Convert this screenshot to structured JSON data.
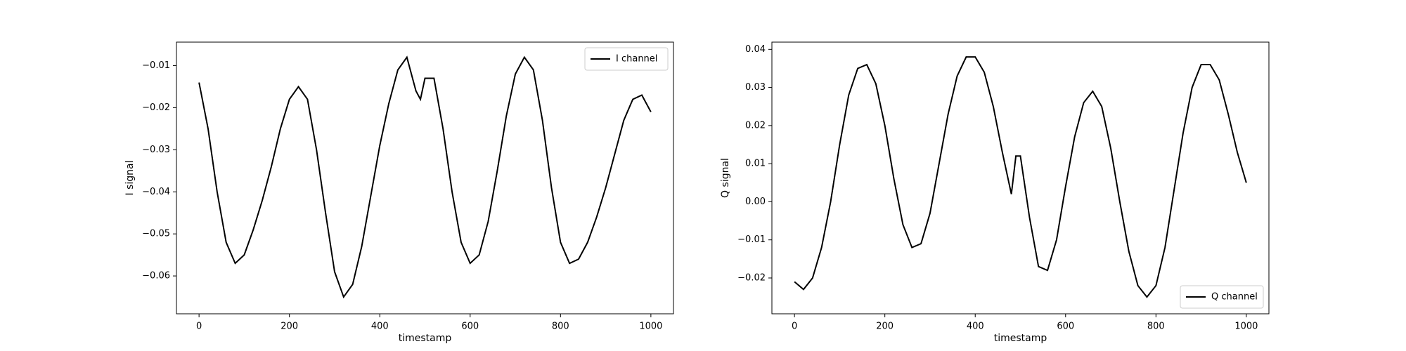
{
  "chart_data": [
    {
      "type": "line",
      "x_label": "timestamp",
      "y_label": "I signal",
      "legend": "upper right",
      "x": [
        0,
        20,
        40,
        60,
        80,
        100,
        120,
        140,
        160,
        180,
        200,
        220,
        240,
        260,
        280,
        300,
        320,
        340,
        360,
        380,
        400,
        420,
        440,
        460,
        480,
        490,
        500,
        520,
        540,
        560,
        580,
        600,
        620,
        640,
        660,
        680,
        700,
        720,
        740,
        760,
        780,
        800,
        820,
        840,
        860,
        880,
        900,
        920,
        940,
        960,
        980,
        1000
      ],
      "series": [
        {
          "name": "I channel",
          "color": "#000000",
          "values": [
            -0.014,
            -0.025,
            -0.04,
            -0.052,
            -0.057,
            -0.055,
            -0.049,
            -0.042,
            -0.034,
            -0.025,
            -0.018,
            -0.015,
            -0.018,
            -0.03,
            -0.045,
            -0.059,
            -0.065,
            -0.062,
            -0.053,
            -0.041,
            -0.029,
            -0.019,
            -0.011,
            -0.008,
            -0.016,
            -0.018,
            -0.013,
            -0.013,
            -0.025,
            -0.04,
            -0.052,
            -0.057,
            -0.055,
            -0.047,
            -0.035,
            -0.022,
            -0.012,
            -0.008,
            -0.011,
            -0.023,
            -0.039,
            -0.052,
            -0.057,
            -0.056,
            -0.052,
            -0.046,
            -0.039,
            -0.031,
            -0.023,
            -0.018,
            -0.017,
            -0.021
          ]
        }
      ],
      "xlim": [
        -50,
        1050
      ],
      "xticks": [
        0,
        200,
        400,
        600,
        800,
        1000
      ],
      "ylim": [
        -0.069,
        -0.0044
      ],
      "yticks": [
        {
          "value": -0.06,
          "label": "−0.06"
        },
        {
          "value": -0.05,
          "label": "−0.05"
        },
        {
          "value": -0.04,
          "label": "−0.04"
        },
        {
          "value": -0.03,
          "label": "−0.03"
        },
        {
          "value": -0.02,
          "label": "−0.02"
        },
        {
          "value": -0.01,
          "label": "−0.01"
        }
      ]
    },
    {
      "type": "line",
      "x_label": "timestamp",
      "y_label": "Q signal",
      "legend": "lower right",
      "x": [
        0,
        20,
        40,
        60,
        80,
        100,
        120,
        140,
        160,
        180,
        200,
        220,
        240,
        260,
        280,
        300,
        320,
        340,
        360,
        380,
        400,
        420,
        440,
        460,
        480,
        490,
        500,
        520,
        540,
        560,
        580,
        600,
        620,
        640,
        660,
        680,
        700,
        720,
        740,
        760,
        780,
        800,
        820,
        840,
        860,
        880,
        900,
        920,
        940,
        960,
        980,
        1000
      ],
      "series": [
        {
          "name": "Q channel",
          "color": "#000000",
          "values": [
            -0.021,
            -0.023,
            -0.02,
            -0.012,
            0.0,
            0.015,
            0.028,
            0.035,
            0.036,
            0.031,
            0.02,
            0.006,
            -0.006,
            -0.012,
            -0.011,
            -0.003,
            0.01,
            0.023,
            0.033,
            0.038,
            0.038,
            0.034,
            0.025,
            0.013,
            0.002,
            0.012,
            0.012,
            -0.004,
            -0.017,
            -0.018,
            -0.01,
            0.004,
            0.017,
            0.026,
            0.029,
            0.025,
            0.014,
            0.0,
            -0.013,
            -0.022,
            -0.025,
            -0.022,
            -0.012,
            0.003,
            0.018,
            0.03,
            0.036,
            0.036,
            0.032,
            0.023,
            0.013,
            0.005
          ]
        }
      ],
      "xlim": [
        -50,
        1050
      ],
      "xticks": [
        0,
        200,
        400,
        600,
        800,
        1000
      ],
      "ylim": [
        -0.0294,
        0.0419
      ],
      "yticks": [
        {
          "value": -0.02,
          "label": "−0.02"
        },
        {
          "value": -0.01,
          "label": "−0.01"
        },
        {
          "value": 0,
          "label": "0.00"
        },
        0.01,
        0.02,
        0.03,
        0.04
      ]
    }
  ]
}
